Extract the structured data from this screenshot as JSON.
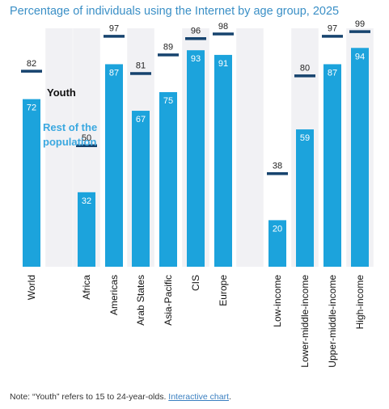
{
  "title": "Percentage of individuals using the Internet by age group, 2025",
  "note": {
    "text": "Note: “Youth” refers to 15 to 24-year-olds. ",
    "link_label": "Interactive chart"
  },
  "colors": {
    "bar": "#1ca3dc",
    "youth_marker": "#16436e",
    "band": "#f1f1f4",
    "rest_label": "#3aa8e0"
  },
  "chart_data": {
    "type": "bar",
    "ylim": [
      0,
      100
    ],
    "categories": [
      "World",
      "Africa",
      "Americas",
      "Arab States",
      "Asia-Pacific",
      "CIS",
      "Europe",
      "Low-income",
      "Lower-middle-income",
      "Upper-middle-income",
      "High-income"
    ],
    "series": [
      {
        "name": "Rest of the population",
        "marker": "bar",
        "values": [
          72,
          32,
          87,
          67,
          75,
          93,
          91,
          20,
          59,
          87,
          94
        ]
      },
      {
        "name": "Youth",
        "marker": "line",
        "values": [
          82,
          50,
          97,
          81,
          89,
          96,
          98,
          38,
          80,
          97,
          99
        ]
      }
    ]
  }
}
